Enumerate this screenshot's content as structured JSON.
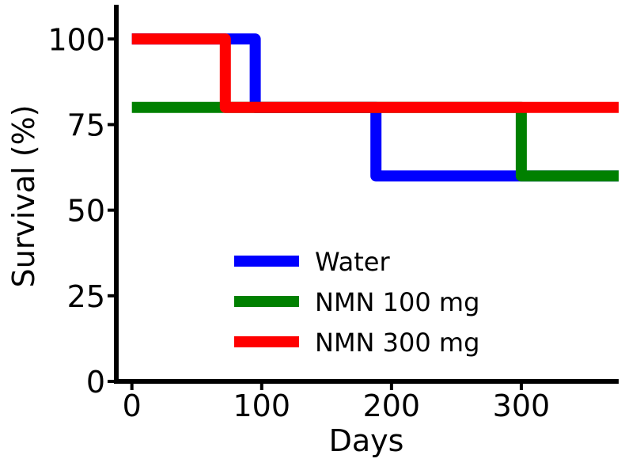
{
  "chart_data": {
    "type": "line",
    "step": true,
    "title": "",
    "xlabel": "Days",
    "ylabel": "Survival (%)",
    "xlim": [
      -12,
      375
    ],
    "ylim": [
      0,
      110
    ],
    "xticks": [
      0,
      100,
      200,
      300
    ],
    "yticks": [
      0,
      25,
      50,
      75,
      100
    ],
    "xtick_labels": [
      "0",
      "100",
      "200",
      "300"
    ],
    "ytick_labels": [
      "0",
      "25",
      "50",
      "75",
      "100"
    ],
    "grid": false,
    "legend_position": "lower-center",
    "series": [
      {
        "name": "Water",
        "color": "#0000ff",
        "x": [
          0,
          95,
          95,
          188,
          188,
          375
        ],
        "y": [
          100,
          100,
          80,
          80,
          60,
          60
        ]
      },
      {
        "name": "NMN 100 mg",
        "color": "#008000",
        "x": [
          0,
          300,
          300,
          375
        ],
        "y": [
          80,
          80,
          60,
          60
        ]
      },
      {
        "name": "NMN 300 mg",
        "color": "#ff0000",
        "x": [
          0,
          72,
          72,
          375
        ],
        "y": [
          100,
          100,
          80,
          80
        ]
      }
    ]
  }
}
